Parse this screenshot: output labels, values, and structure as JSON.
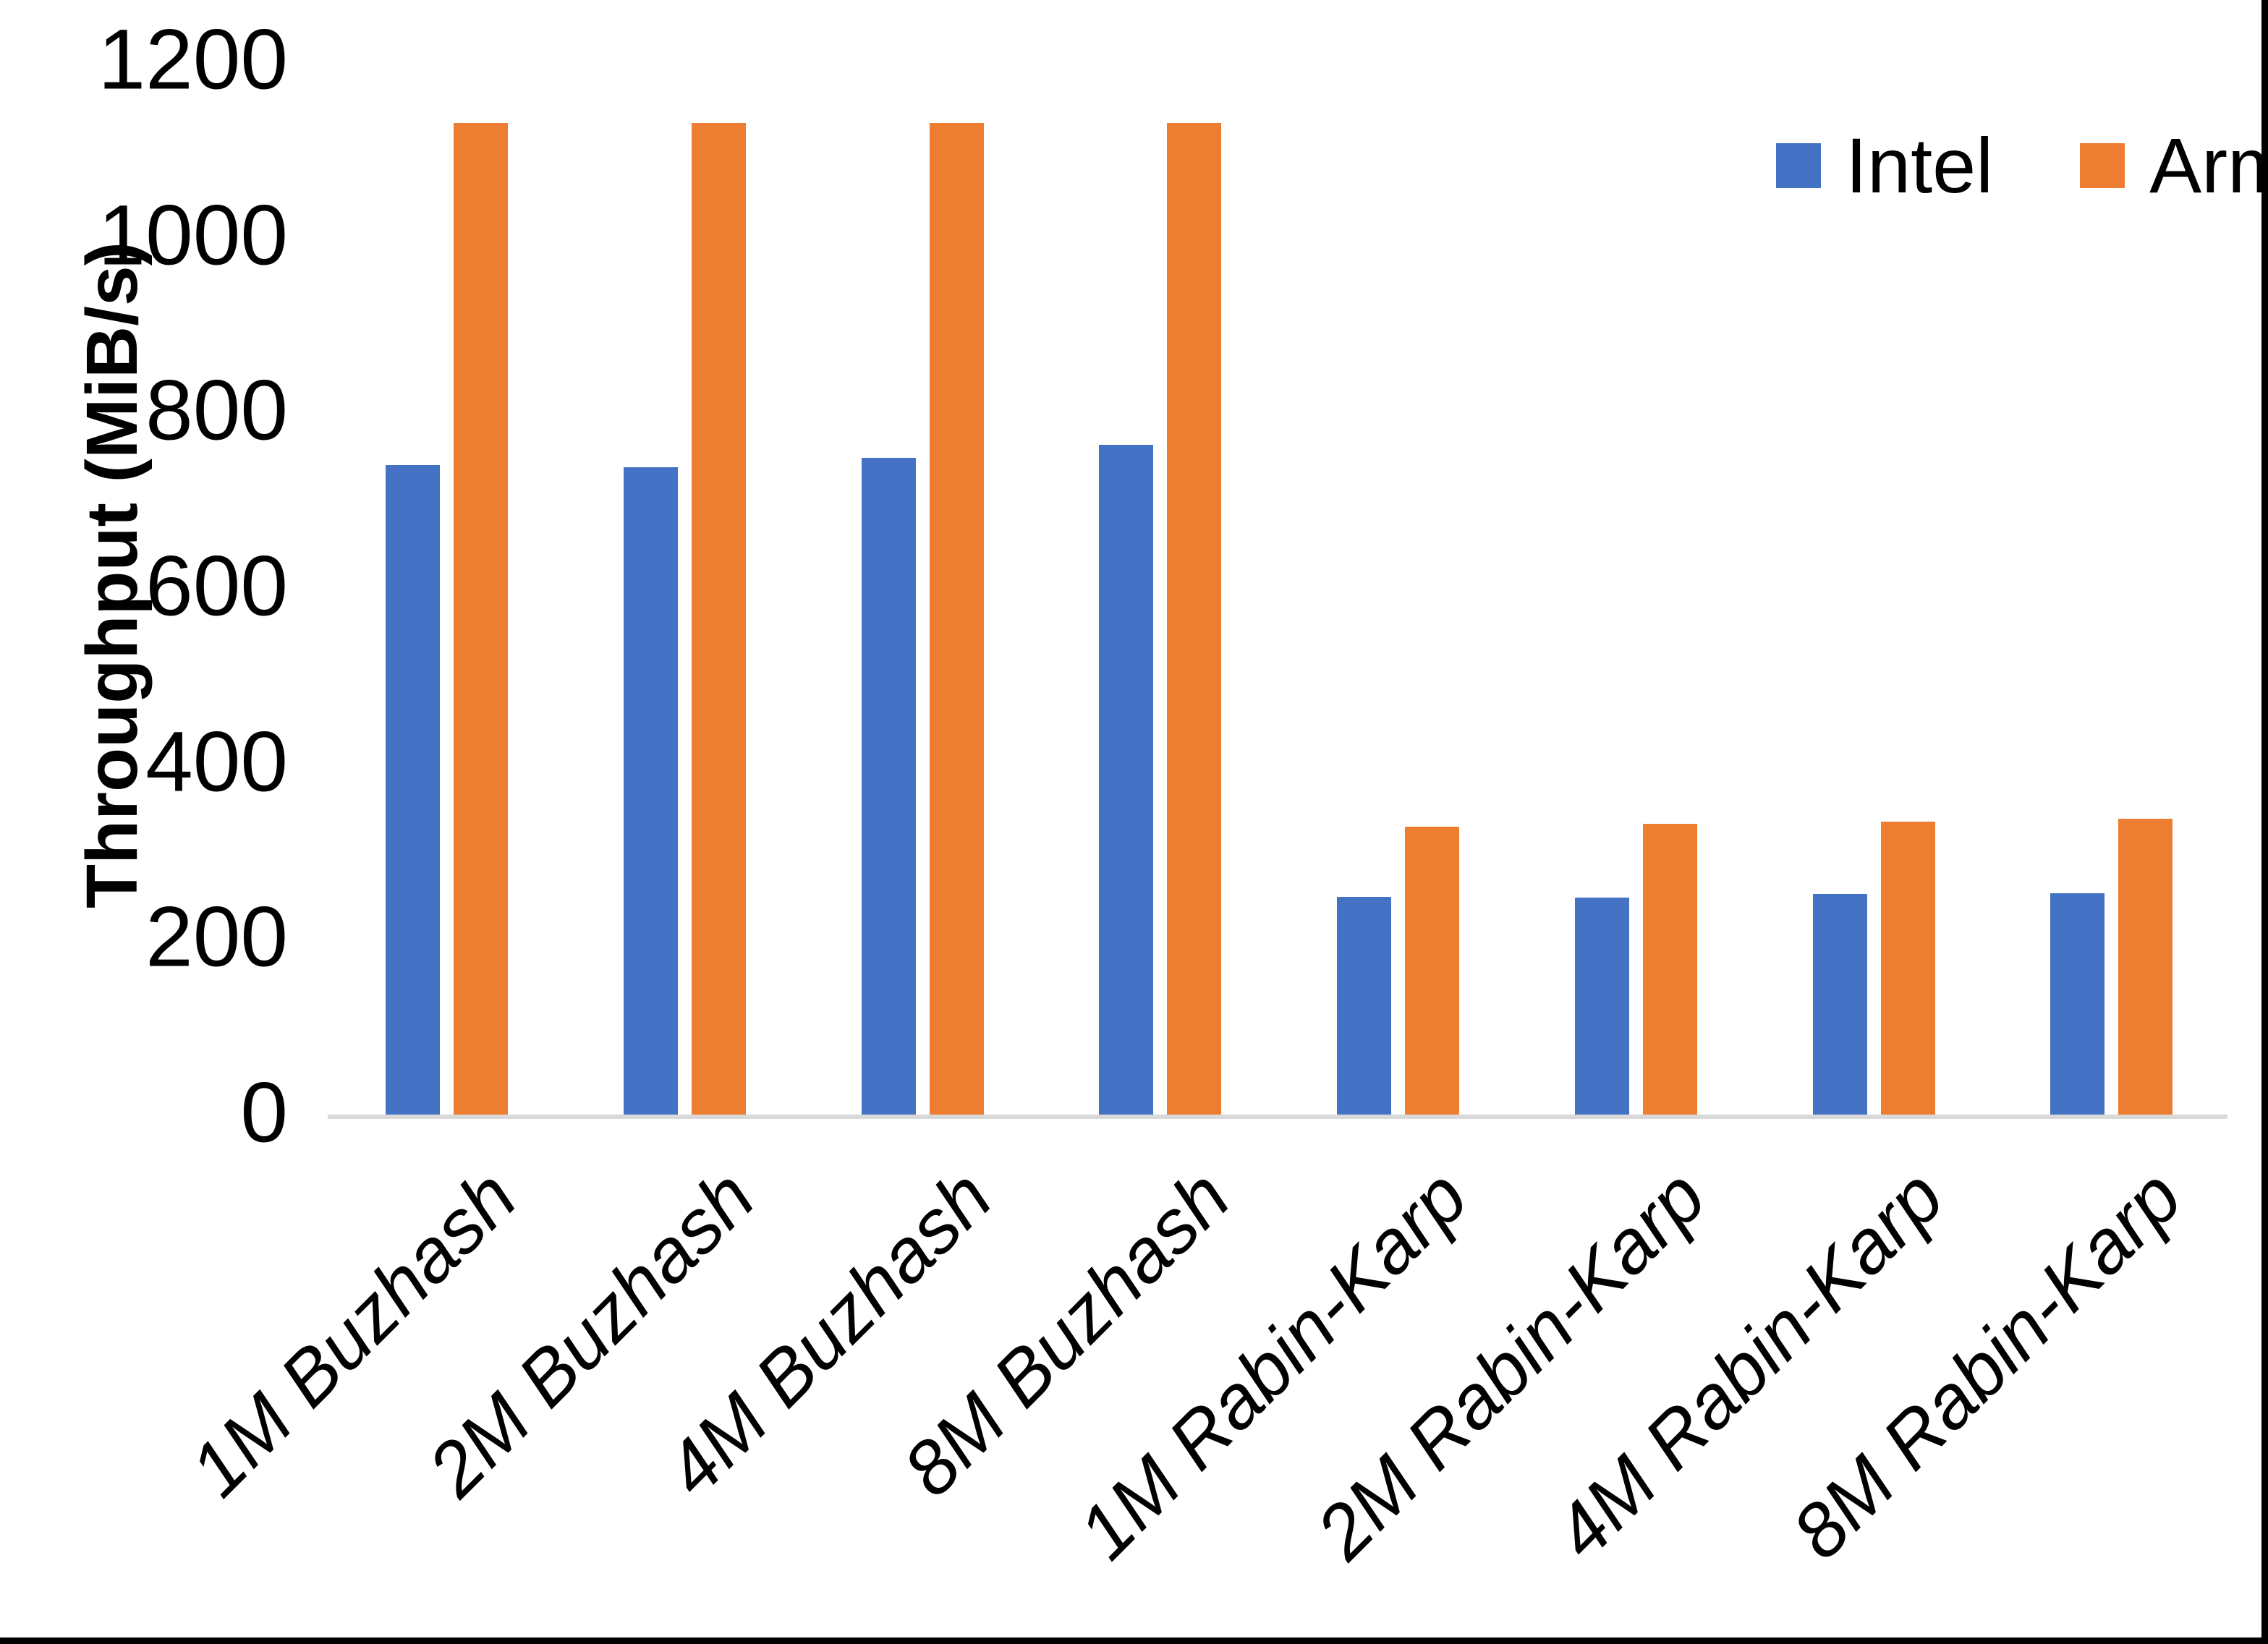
{
  "chart_data": {
    "type": "bar",
    "title": "",
    "xlabel": "",
    "ylabel": "Throughput (MiB/s)",
    "categories": [
      "1M Buzhash",
      "2M Buzhash",
      "4M Buzhash",
      "8M Buzhash",
      "1M Rabin-Karp",
      "2M Rabin-Karp",
      "4M Rabin-Karp",
      "8M Rabin-Karp"
    ],
    "series": [
      {
        "name": "Intel",
        "color": "#4472C4",
        "values": [
          740,
          738,
          748,
          763,
          248,
          247,
          251,
          252
        ]
      },
      {
        "name": "Arm",
        "color": "#ED7D31",
        "values": [
          1130,
          1130,
          1130,
          1130,
          328,
          331,
          334,
          337
        ]
      }
    ],
    "ylim": [
      0,
      1200
    ],
    "yticks": [
      0,
      200,
      400,
      600,
      800,
      1000,
      1200
    ],
    "grid": false,
    "legend_position": "top-right",
    "axis_line_color": "#d9d9d9",
    "text_color": "#000000"
  }
}
